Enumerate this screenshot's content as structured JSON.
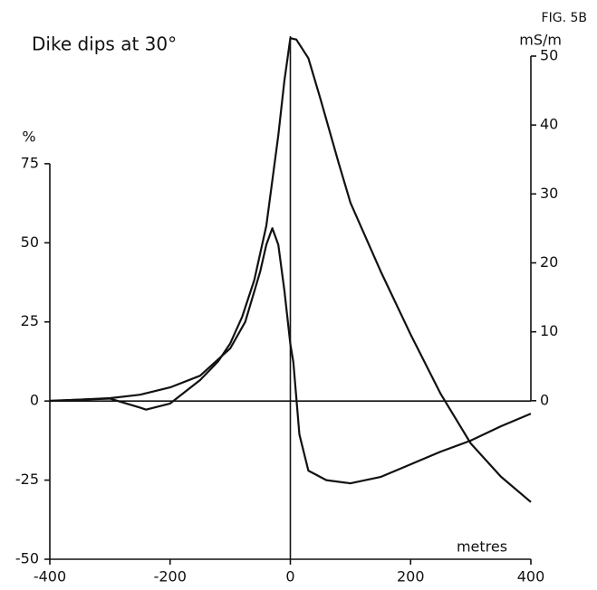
{
  "chart_data": {
    "type": "line",
    "title": "Dike dips at 30°",
    "figure_label": "FIG. 5B",
    "x_label": "metres",
    "y_label": "%",
    "y2_label": "mS/m",
    "xlim": [
      -400,
      400
    ],
    "xticks": [
      -400,
      -200,
      0,
      200,
      400
    ],
    "ylim": [
      -50,
      109
    ],
    "yticks": [
      -50,
      -25,
      0,
      25,
      50,
      75
    ],
    "y2lim": [
      -23,
      50
    ],
    "y2ticks": [
      0,
      10,
      20,
      30,
      40,
      50
    ],
    "grid": false,
    "series": [
      {
        "color": "#111111",
        "axis": "y2",
        "x": [
          -400,
          -300,
          -250,
          -240,
          -200,
          -150,
          -120,
          -100,
          -80,
          -60,
          -40,
          -20,
          -10,
          0,
          10,
          30,
          50,
          80,
          100,
          150,
          200,
          250,
          300,
          350,
          400
        ],
        "values": [
          0,
          0.3,
          -1,
          -1.3,
          -0.4,
          3,
          5.7,
          8.3,
          12.2,
          17.5,
          25.4,
          38.5,
          46.4,
          52.6,
          52.4,
          49.7,
          43.8,
          34.6,
          28.7,
          18.8,
          9.6,
          1,
          -6.2,
          -11,
          -14.7
        ]
      },
      {
        "color": "#111111",
        "x": [
          -400,
          -300,
          -250,
          -200,
          -150,
          -100,
          -75,
          -50,
          -40,
          -30,
          -20,
          -10,
          0,
          5,
          15,
          30,
          60,
          100,
          150,
          200,
          250,
          300,
          350,
          400
        ],
        "values": [
          0,
          0.9,
          2,
          4.3,
          8,
          16.6,
          25,
          41,
          49.4,
          54.6,
          49.4,
          35,
          18,
          12.3,
          -10.6,
          -22,
          -25,
          -26,
          -24,
          -20,
          -16,
          -12.5,
          -8,
          -4
        ]
      }
    ]
  }
}
